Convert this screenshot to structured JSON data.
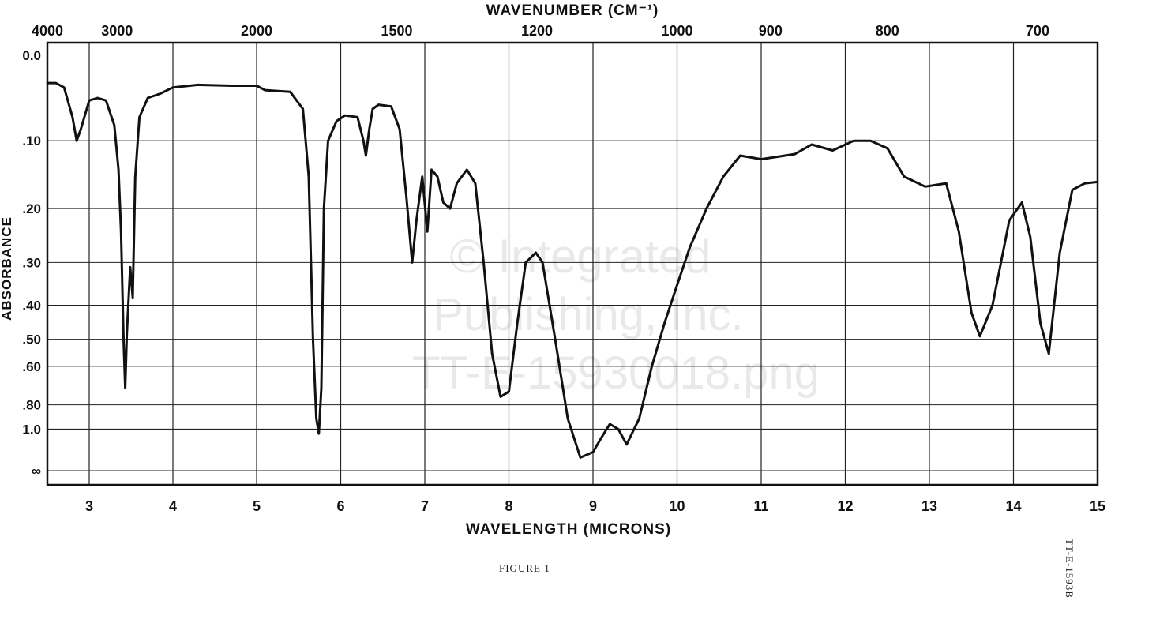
{
  "watermark": [
    "© Integrated",
    "Publishing, Inc.",
    "TT-E-15930018.png"
  ],
  "figure_caption": "FIGURE 1",
  "figure_code": "TT-E-1593B",
  "chart_data": {
    "type": "line",
    "title": "WAVENUMBER (CM⁻¹)",
    "xlabel": "WAVELENGTH (MICRONS)",
    "ylabel": "ABSORBANCE",
    "xlim": [
      2.5,
      15
    ],
    "x_ticks": [
      "3",
      "4",
      "5",
      "6",
      "7",
      "8",
      "9",
      "10",
      "11",
      "12",
      "13",
      "14",
      "15"
    ],
    "top_axis_ticks": [
      {
        "label": "4000",
        "micron": 2.5
      },
      {
        "label": "3000",
        "micron": 3.333
      },
      {
        "label": "2000",
        "micron": 5.0
      },
      {
        "label": "1500",
        "micron": 6.667
      },
      {
        "label": "1200",
        "micron": 8.333
      },
      {
        "label": "1000",
        "micron": 10.0
      },
      {
        "label": "900",
        "micron": 11.111
      },
      {
        "label": "800",
        "micron": 12.5
      },
      {
        "label": "700",
        "micron": 14.286
      }
    ],
    "y_scale": "absorbance (log transmittance)",
    "y_ticks": [
      {
        "label": "0.0",
        "value": 0.0
      },
      {
        "label": ".10",
        "value": 0.1
      },
      {
        "label": ".20",
        "value": 0.2
      },
      {
        "label": ".30",
        "value": 0.3
      },
      {
        "label": ".40",
        "value": 0.4
      },
      {
        "label": ".50",
        "value": 0.5
      },
      {
        "label": ".60",
        "value": 0.6
      },
      {
        "label": ".80",
        "value": 0.8
      },
      {
        "label": "1.0",
        "value": 1.0
      },
      {
        "label": "∞",
        "value": "infinity"
      }
    ],
    "grid": true,
    "series": [
      {
        "points": [
          [
            2.5,
            0.03
          ],
          [
            2.6,
            0.03
          ],
          [
            2.7,
            0.035
          ],
          [
            2.8,
            0.07
          ],
          [
            2.85,
            0.1
          ],
          [
            2.9,
            0.085
          ],
          [
            3.0,
            0.05
          ],
          [
            3.1,
            0.047
          ],
          [
            3.2,
            0.05
          ],
          [
            3.3,
            0.08
          ],
          [
            3.35,
            0.14
          ],
          [
            3.38,
            0.24
          ],
          [
            3.41,
            0.5
          ],
          [
            3.43,
            0.7
          ],
          [
            3.45,
            0.48
          ],
          [
            3.49,
            0.31
          ],
          [
            3.52,
            0.38
          ],
          [
            3.55,
            0.15
          ],
          [
            3.6,
            0.07
          ],
          [
            3.7,
            0.047
          ],
          [
            3.85,
            0.042
          ],
          [
            4.0,
            0.035
          ],
          [
            4.3,
            0.032
          ],
          [
            4.7,
            0.033
          ],
          [
            5.0,
            0.033
          ],
          [
            5.1,
            0.038
          ],
          [
            5.4,
            0.04
          ],
          [
            5.55,
            0.06
          ],
          [
            5.62,
            0.15
          ],
          [
            5.67,
            0.5
          ],
          [
            5.71,
            0.9
          ],
          [
            5.74,
            1.05
          ],
          [
            5.77,
            0.7
          ],
          [
            5.8,
            0.2
          ],
          [
            5.85,
            0.1
          ],
          [
            5.95,
            0.075
          ],
          [
            6.05,
            0.068
          ],
          [
            6.2,
            0.07
          ],
          [
            6.27,
            0.1
          ],
          [
            6.3,
            0.12
          ],
          [
            6.34,
            0.085
          ],
          [
            6.38,
            0.06
          ],
          [
            6.45,
            0.055
          ],
          [
            6.6,
            0.057
          ],
          [
            6.7,
            0.085
          ],
          [
            6.78,
            0.18
          ],
          [
            6.85,
            0.3
          ],
          [
            6.9,
            0.22
          ],
          [
            6.97,
            0.15
          ],
          [
            7.03,
            0.24
          ],
          [
            7.08,
            0.14
          ],
          [
            7.15,
            0.15
          ],
          [
            7.22,
            0.19
          ],
          [
            7.3,
            0.2
          ],
          [
            7.38,
            0.16
          ],
          [
            7.5,
            0.14
          ],
          [
            7.6,
            0.16
          ],
          [
            7.7,
            0.3
          ],
          [
            7.8,
            0.55
          ],
          [
            7.9,
            0.75
          ],
          [
            8.0,
            0.72
          ],
          [
            8.1,
            0.45
          ],
          [
            8.2,
            0.3
          ],
          [
            8.32,
            0.28
          ],
          [
            8.4,
            0.3
          ],
          [
            8.55,
            0.5
          ],
          [
            8.7,
            0.9
          ],
          [
            8.85,
            1.5
          ],
          [
            9.0,
            1.35
          ],
          [
            9.1,
            1.1
          ],
          [
            9.2,
            0.95
          ],
          [
            9.3,
            1.0
          ],
          [
            9.4,
            1.2
          ],
          [
            9.55,
            0.9
          ],
          [
            9.7,
            0.6
          ],
          [
            9.85,
            0.45
          ],
          [
            10.0,
            0.35
          ],
          [
            10.15,
            0.27
          ],
          [
            10.35,
            0.2
          ],
          [
            10.55,
            0.15
          ],
          [
            10.75,
            0.12
          ],
          [
            11.0,
            0.125
          ],
          [
            11.4,
            0.118
          ],
          [
            11.6,
            0.105
          ],
          [
            11.85,
            0.113
          ],
          [
            12.1,
            0.1
          ],
          [
            12.3,
            0.1
          ],
          [
            12.5,
            0.11
          ],
          [
            12.7,
            0.15
          ],
          [
            12.95,
            0.165
          ],
          [
            13.2,
            0.16
          ],
          [
            13.35,
            0.24
          ],
          [
            13.5,
            0.42
          ],
          [
            13.6,
            0.49
          ],
          [
            13.75,
            0.4
          ],
          [
            13.95,
            0.22
          ],
          [
            14.1,
            0.19
          ],
          [
            14.2,
            0.25
          ],
          [
            14.32,
            0.45
          ],
          [
            14.42,
            0.55
          ],
          [
            14.55,
            0.28
          ],
          [
            14.7,
            0.17
          ],
          [
            14.85,
            0.16
          ],
          [
            15.0,
            0.158
          ]
        ]
      }
    ]
  }
}
